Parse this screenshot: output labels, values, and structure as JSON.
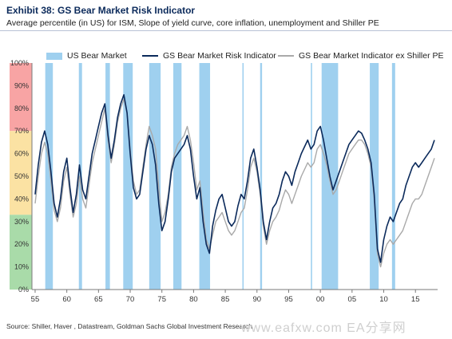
{
  "header": {
    "title": "Exhibit 38: GS Bear Market Risk Indicator",
    "subtitle": "Average percentile (in US) for ISM, Slope of yield curve, core inflation, unemployment and Shiller PE"
  },
  "footer": {
    "source": "Source: Shiller, Haver , Datastream, Goldman Sachs Global Investment Research",
    "watermark": "www.eafxw.com   EA分享网"
  },
  "colors": {
    "bear_band": "#9fd0ef",
    "indicator": "#0b2a5b",
    "indicator_ex": "#a9a9a9",
    "zone_red": "#f8a4a4",
    "zone_yellow": "#fbe2a3",
    "zone_green": "#a9dba9"
  },
  "chart_data": {
    "type": "line",
    "xlabel": "",
    "ylabel": "",
    "xlim": [
      1954.5,
      2018.5
    ],
    "ylim": [
      0,
      100
    ],
    "x_ticks": [
      1955,
      1960,
      1965,
      1970,
      1975,
      1980,
      1985,
      1990,
      1995,
      2000,
      2005,
      2010,
      2015
    ],
    "x_tick_labels": [
      "55",
      "60",
      "65",
      "70",
      "75",
      "80",
      "85",
      "90",
      "95",
      "00",
      "05",
      "10",
      "15"
    ],
    "y_ticks": [
      0,
      10,
      20,
      30,
      40,
      50,
      60,
      70,
      80,
      90,
      100
    ],
    "y_tick_labels": [
      "0%",
      "10%",
      "20%",
      "30%",
      "40%",
      "50%",
      "60%",
      "70%",
      "80%",
      "90%",
      "100%"
    ],
    "background_zones": [
      {
        "from": 70,
        "to": 100,
        "color": "red"
      },
      {
        "from": 33,
        "to": 70,
        "color": "yellow"
      },
      {
        "from": 0,
        "to": 33,
        "color": "green"
      }
    ],
    "bear_markets": [
      [
        1956.6,
        1957.8
      ],
      [
        1961.9,
        1962.4
      ],
      [
        1966.1,
        1966.8
      ],
      [
        1968.9,
        1970.4
      ],
      [
        1973.0,
        1974.8
      ],
      [
        1976.8,
        1978.1
      ],
      [
        1980.9,
        1982.6
      ],
      [
        1987.7,
        1987.9
      ],
      [
        1990.5,
        1990.8
      ],
      [
        1998.5,
        1998.7
      ],
      [
        2000.2,
        2002.8
      ],
      [
        2007.8,
        2009.2
      ],
      [
        2011.3,
        2011.8
      ]
    ],
    "legend": [
      "US Bear Market",
      "GS Bear Market Risk Indicator",
      "GS Bear Market Indicator ex Shiller PE"
    ],
    "series": [
      {
        "name": "GS Bear Market Risk Indicator",
        "x": [
          1955.0,
          1955.5,
          1956.0,
          1956.5,
          1957.0,
          1957.5,
          1958.0,
          1958.5,
          1959.0,
          1959.5,
          1960.0,
          1960.5,
          1961.0,
          1961.5,
          1962.0,
          1962.5,
          1963.0,
          1963.5,
          1964.0,
          1964.5,
          1965.0,
          1965.5,
          1966.0,
          1966.5,
          1967.0,
          1967.5,
          1968.0,
          1968.5,
          1969.0,
          1969.5,
          1970.0,
          1970.5,
          1971.0,
          1971.5,
          1972.0,
          1972.5,
          1973.0,
          1973.5,
          1974.0,
          1974.5,
          1975.0,
          1975.5,
          1976.0,
          1976.5,
          1977.0,
          1977.5,
          1978.0,
          1978.5,
          1979.0,
          1979.5,
          1980.0,
          1980.5,
          1981.0,
          1981.5,
          1982.0,
          1982.5,
          1983.0,
          1983.5,
          1984.0,
          1984.5,
          1985.0,
          1985.5,
          1986.0,
          1986.5,
          1987.0,
          1987.5,
          1988.0,
          1988.5,
          1989.0,
          1989.5,
          1990.0,
          1990.5,
          1991.0,
          1991.5,
          1992.0,
          1992.5,
          1993.0,
          1993.5,
          1994.0,
          1994.5,
          1995.0,
          1995.5,
          1996.0,
          1996.5,
          1997.0,
          1997.5,
          1998.0,
          1998.5,
          1999.0,
          1999.5,
          2000.0,
          2000.5,
          2001.0,
          2001.5,
          2002.0,
          2002.5,
          2003.0,
          2003.5,
          2004.0,
          2004.5,
          2005.0,
          2005.5,
          2006.0,
          2006.5,
          2007.0,
          2007.5,
          2008.0,
          2008.5,
          2009.0,
          2009.5,
          2010.0,
          2010.5,
          2011.0,
          2011.5,
          2012.0,
          2012.5,
          2013.0,
          2013.5,
          2014.0,
          2014.5,
          2015.0,
          2015.5,
          2016.0,
          2016.5,
          2017.0,
          2017.5,
          2018.0
        ],
        "values": [
          42,
          55,
          65,
          70,
          64,
          52,
          38,
          32,
          40,
          52,
          58,
          45,
          34,
          42,
          55,
          44,
          40,
          50,
          60,
          66,
          72,
          78,
          82,
          68,
          58,
          66,
          76,
          82,
          86,
          78,
          60,
          45,
          40,
          42,
          52,
          62,
          68,
          64,
          55,
          38,
          26,
          30,
          40,
          52,
          58,
          60,
          62,
          64,
          68,
          62,
          50,
          40,
          45,
          30,
          20,
          16,
          28,
          35,
          40,
          42,
          36,
          30,
          28,
          30,
          37,
          42,
          40,
          48,
          58,
          62,
          54,
          44,
          30,
          22,
          30,
          36,
          38,
          42,
          48,
          52,
          50,
          46,
          52,
          56,
          60,
          63,
          66,
          62,
          64,
          70,
          72,
          66,
          58,
          50,
          44,
          48,
          52,
          56,
          60,
          64,
          66,
          68,
          70,
          69,
          66,
          62,
          56,
          42,
          18,
          12,
          22,
          28,
          32,
          30,
          34,
          38,
          40,
          46,
          50,
          54,
          56,
          54,
          56,
          58,
          60,
          62,
          66
        ]
      },
      {
        "name": "GS Bear Market Indicator ex Shiller PE",
        "x": [
          1955.0,
          1955.5,
          1956.0,
          1956.5,
          1957.0,
          1957.5,
          1958.0,
          1958.5,
          1959.0,
          1959.5,
          1960.0,
          1960.5,
          1961.0,
          1961.5,
          1962.0,
          1962.5,
          1963.0,
          1963.5,
          1964.0,
          1964.5,
          1965.0,
          1965.5,
          1966.0,
          1966.5,
          1967.0,
          1967.5,
          1968.0,
          1968.5,
          1969.0,
          1969.5,
          1970.0,
          1970.5,
          1971.0,
          1971.5,
          1972.0,
          1972.5,
          1973.0,
          1973.5,
          1974.0,
          1974.5,
          1975.0,
          1975.5,
          1976.0,
          1976.5,
          1977.0,
          1977.5,
          1978.0,
          1978.5,
          1979.0,
          1979.5,
          1980.0,
          1980.5,
          1981.0,
          1981.5,
          1982.0,
          1982.5,
          1983.0,
          1983.5,
          1984.0,
          1984.5,
          1985.0,
          1985.5,
          1986.0,
          1986.5,
          1987.0,
          1987.5,
          1988.0,
          1988.5,
          1989.0,
          1989.5,
          1990.0,
          1990.5,
          1991.0,
          1991.5,
          1992.0,
          1992.5,
          1993.0,
          1993.5,
          1994.0,
          1994.5,
          1995.0,
          1995.5,
          1996.0,
          1996.5,
          1997.0,
          1997.5,
          1998.0,
          1998.5,
          1999.0,
          1999.5,
          2000.0,
          2000.5,
          2001.0,
          2001.5,
          2002.0,
          2002.5,
          2003.0,
          2003.5,
          2004.0,
          2004.5,
          2005.0,
          2005.5,
          2006.0,
          2006.5,
          2007.0,
          2007.5,
          2008.0,
          2008.5,
          2009.0,
          2009.5,
          2010.0,
          2010.5,
          2011.0,
          2011.5,
          2012.0,
          2012.5,
          2013.0,
          2013.5,
          2014.0,
          2014.5,
          2015.0,
          2015.5,
          2016.0,
          2016.5,
          2017.0,
          2017.5,
          2018.0
        ],
        "values": [
          38,
          50,
          60,
          65,
          60,
          48,
          35,
          30,
          36,
          48,
          54,
          42,
          32,
          38,
          50,
          40,
          36,
          46,
          56,
          62,
          68,
          74,
          80,
          66,
          56,
          64,
          74,
          80,
          84,
          78,
          62,
          48,
          42,
          44,
          54,
          64,
          72,
          68,
          62,
          45,
          30,
          34,
          42,
          54,
          60,
          64,
          66,
          68,
          72,
          66,
          56,
          44,
          48,
          34,
          22,
          18,
          24,
          30,
          32,
          34,
          30,
          26,
          24,
          26,
          30,
          34,
          36,
          44,
          54,
          58,
          52,
          42,
          28,
          20,
          26,
          30,
          32,
          35,
          40,
          44,
          42,
          38,
          42,
          46,
          50,
          53,
          56,
          54,
          56,
          62,
          64,
          60,
          55,
          48,
          42,
          44,
          48,
          52,
          56,
          60,
          62,
          64,
          66,
          66,
          64,
          60,
          54,
          40,
          16,
          10,
          16,
          20,
          22,
          20,
          22,
          24,
          26,
          30,
          34,
          38,
          40,
          40,
          42,
          46,
          50,
          54,
          58
        ]
      }
    ]
  }
}
